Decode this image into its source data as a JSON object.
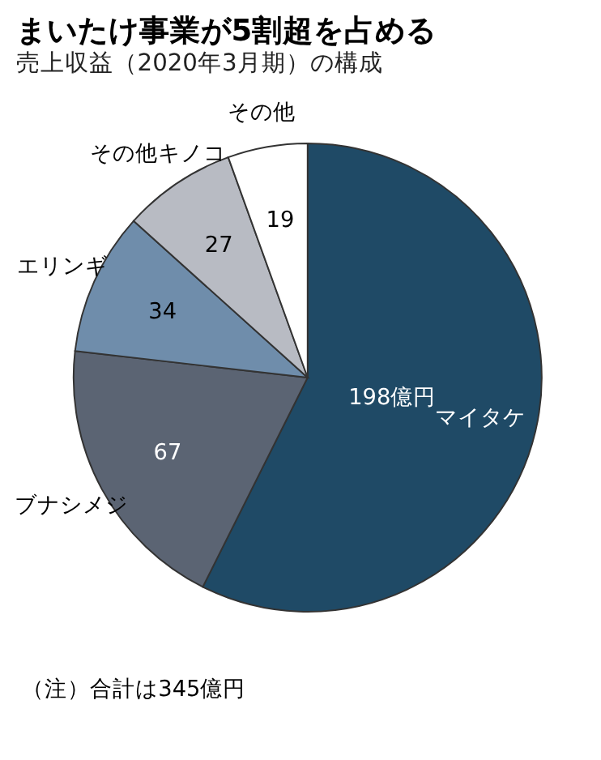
{
  "chart_data": {
    "type": "pie",
    "title": "まいたけ事業が5割超を占める",
    "subtitle": "売上収益（2020年3月期）の構成",
    "categories": [
      "マイタケ",
      "ブナシメジ",
      "エリンギ",
      "その他キノコ",
      "その他"
    ],
    "values": [
      198,
      67,
      34,
      27,
      19
    ],
    "value_labels": [
      "198億円",
      "67",
      "34",
      "27",
      "19"
    ],
    "colors": [
      "#1f4a66",
      "#5b6473",
      "#6f8dab",
      "#b8bbc3",
      "#ffffff"
    ],
    "annotations": [
      "（注）合計は345億円"
    ],
    "legend": false
  }
}
